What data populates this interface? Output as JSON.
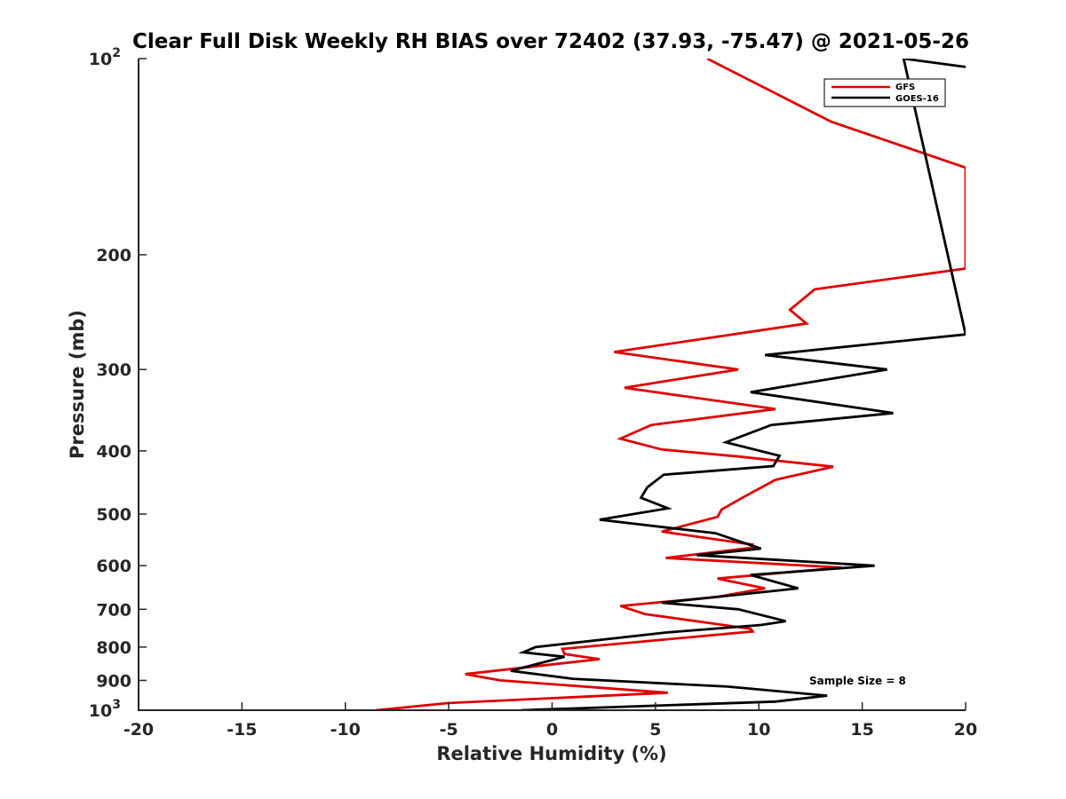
{
  "chart_data": {
    "type": "line",
    "title": "Clear Full Disk Weekly RH BIAS over 72402 (37.93, -75.47) @ 2021-05-26",
    "xlabel": "Relative Humidity (%)",
    "ylabel": "Pressure (mb)",
    "xlim": [
      -20,
      20
    ],
    "ylim": [
      100,
      1000
    ],
    "y_scale": "log",
    "y_reversed": true,
    "grid": false,
    "legend_position": "top-right",
    "x_ticks": [
      "-20",
      "-15",
      "-10",
      "-5",
      "0",
      "5",
      "10",
      "15",
      "20"
    ],
    "y_ticks": [
      {
        "value": 100,
        "base": "10",
        "exp": "2"
      },
      {
        "value": 200,
        "label": "200"
      },
      {
        "value": 300,
        "label": "300"
      },
      {
        "value": 400,
        "label": "400"
      },
      {
        "value": 500,
        "label": "500"
      },
      {
        "value": 600,
        "label": "600"
      },
      {
        "value": 700,
        "label": "700"
      },
      {
        "value": 800,
        "label": "800"
      },
      {
        "value": 900,
        "label": "900"
      },
      {
        "value": 1000,
        "base": "10",
        "exp": "3"
      }
    ],
    "annotation": "Sample Size = 8",
    "series": [
      {
        "name": "GFS",
        "color": "#e00000",
        "points": [
          [
            7.5,
            100
          ],
          [
            13.5,
            125
          ],
          [
            20,
            147
          ],
          [
            20,
            210
          ],
          [
            12.7,
            226
          ],
          [
            11.5,
            243
          ],
          [
            12.3,
            255
          ],
          [
            3.0,
            282
          ],
          [
            9.0,
            300
          ],
          [
            3.5,
            320
          ],
          [
            10.8,
            345
          ],
          [
            4.8,
            365
          ],
          [
            3.3,
            383
          ],
          [
            5.3,
            398
          ],
          [
            9.0,
            408
          ],
          [
            13.6,
            423
          ],
          [
            10.8,
            443
          ],
          [
            9.2,
            472
          ],
          [
            8.2,
            492
          ],
          [
            8.0,
            505
          ],
          [
            5.3,
            532
          ],
          [
            9.7,
            557
          ],
          [
            9.7,
            563
          ],
          [
            5.5,
            584
          ],
          [
            14.0,
            604
          ],
          [
            8.0,
            628
          ],
          [
            10.3,
            650
          ],
          [
            8.0,
            670
          ],
          [
            3.3,
            692
          ],
          [
            4.5,
            712
          ],
          [
            9.6,
            750
          ],
          [
            9.7,
            757
          ],
          [
            0.5,
            805
          ],
          [
            0.6,
            820
          ],
          [
            2.3,
            835
          ],
          [
            -4.2,
            880
          ],
          [
            -2.5,
            900
          ],
          [
            5.6,
            940
          ],
          [
            -5.0,
            975
          ],
          [
            -8.5,
            1000
          ]
        ]
      },
      {
        "name": "GOES-16",
        "color": "#000000",
        "points": [
          [
            20,
            103
          ],
          [
            17,
            100
          ],
          [
            20,
            265
          ],
          [
            10.3,
            285
          ],
          [
            16.2,
            300
          ],
          [
            9.6,
            325
          ],
          [
            16.5,
            350
          ],
          [
            10.6,
            365
          ],
          [
            8.4,
            388
          ],
          [
            11.0,
            407
          ],
          [
            10.7,
            422
          ],
          [
            5.4,
            435
          ],
          [
            4.6,
            455
          ],
          [
            4.3,
            472
          ],
          [
            5.6,
            490
          ],
          [
            2.3,
            510
          ],
          [
            7.9,
            535
          ],
          [
            10.1,
            565
          ],
          [
            7.0,
            578
          ],
          [
            15.6,
            600
          ],
          [
            9.6,
            620
          ],
          [
            11.9,
            650
          ],
          [
            5.3,
            684
          ],
          [
            9.0,
            700
          ],
          [
            11.3,
            730
          ],
          [
            10.1,
            740
          ],
          [
            5.5,
            760
          ],
          [
            -0.8,
            800
          ],
          [
            -1.4,
            815
          ],
          [
            0.6,
            828
          ],
          [
            -2.0,
            870
          ],
          [
            1.0,
            895
          ],
          [
            8.5,
            920
          ],
          [
            13.3,
            950
          ],
          [
            10.8,
            970
          ],
          [
            -1.5,
            1000
          ]
        ]
      }
    ]
  }
}
